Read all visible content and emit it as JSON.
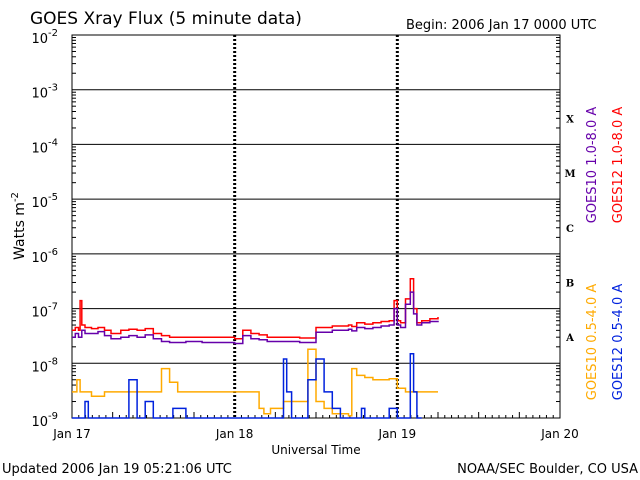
{
  "chart_data": {
    "type": "line",
    "title": "GOES Xray Flux (5 minute data)",
    "begin_label": "Begin:  2006 Jan 17 0000 UTC",
    "xlabel": "Universal Time",
    "ylabel": "Watts m",
    "ylabel_exponent": "-2",
    "x_unit": "days since 2006 Jan 17 00:00 UTC",
    "xlim": [
      0,
      3
    ],
    "x_ticks": [
      {
        "value": 0,
        "label": "Jan 17"
      },
      {
        "value": 1,
        "label": "Jan 18"
      },
      {
        "value": 2,
        "label": "Jan 19"
      },
      {
        "value": 3,
        "label": "Jan 20"
      }
    ],
    "y_scale": "log",
    "ylim": [
      1e-09,
      0.01
    ],
    "y_ticks": [
      {
        "value": 0.01,
        "base": "10",
        "exp": "-2"
      },
      {
        "value": 0.001,
        "base": "10",
        "exp": "-3"
      },
      {
        "value": 0.0001,
        "base": "10",
        "exp": "-4"
      },
      {
        "value": 1e-05,
        "base": "10",
        "exp": "-5"
      },
      {
        "value": 1e-06,
        "base": "10",
        "exp": "-6"
      },
      {
        "value": 1e-07,
        "base": "10",
        "exp": "-7"
      },
      {
        "value": 1e-08,
        "base": "10",
        "exp": "-8"
      },
      {
        "value": 1e-09,
        "base": "10",
        "exp": "-9"
      }
    ],
    "flare_classes": [
      {
        "label": "X",
        "value": 0.0003
      },
      {
        "label": "M",
        "value": 3e-05
      },
      {
        "label": "C",
        "value": 3e-06
      },
      {
        "label": "B",
        "value": 3e-07
      },
      {
        "label": "A",
        "value": 3e-08
      }
    ],
    "grid": true,
    "legend_position": "right",
    "series": [
      {
        "name": "GOES12 1.0-8.0 A",
        "color": "#ff0000",
        "x": [
          0,
          0.02,
          0.04,
          0.05,
          0.06,
          0.08,
          0.12,
          0.16,
          0.2,
          0.24,
          0.3,
          0.35,
          0.4,
          0.45,
          0.5,
          0.55,
          0.6,
          0.7,
          0.8,
          0.9,
          1.0,
          1.05,
          1.1,
          1.15,
          1.2,
          1.3,
          1.4,
          1.5,
          1.6,
          1.7,
          1.72,
          1.75,
          1.8,
          1.85,
          1.9,
          1.95,
          1.98,
          2.0,
          2.02,
          2.05,
          2.08,
          2.1,
          2.12,
          2.15,
          2.2,
          2.25
        ],
        "values": [
          4e-08,
          4.5e-08,
          4e-08,
          1.4e-07,
          5e-08,
          4.5e-08,
          4.3e-08,
          4.5e-08,
          4e-08,
          3.5e-08,
          4e-08,
          4.2e-08,
          4e-08,
          4.3e-08,
          3.5e-08,
          3.2e-08,
          3e-08,
          3e-08,
          3e-08,
          3e-08,
          2.8e-08,
          4e-08,
          3.5e-08,
          3.3e-08,
          3e-08,
          3e-08,
          2.9e-08,
          4.5e-08,
          4.8e-08,
          5e-08,
          4.7e-08,
          5.5e-08,
          5.2e-08,
          5.5e-08,
          5.8e-08,
          6e-08,
          1.4e-07,
          6e-08,
          5.5e-08,
          1.5e-07,
          3.5e-07,
          1e-07,
          5.5e-08,
          6e-08,
          6.5e-08,
          7e-08
        ]
      },
      {
        "name": "GOES10 1.0-8.0 A",
        "color": "#6600aa",
        "x": [
          0,
          0.02,
          0.04,
          0.06,
          0.08,
          0.12,
          0.16,
          0.2,
          0.24,
          0.3,
          0.35,
          0.4,
          0.45,
          0.5,
          0.55,
          0.6,
          0.7,
          0.8,
          0.9,
          1.0,
          1.05,
          1.1,
          1.15,
          1.2,
          1.3,
          1.4,
          1.5,
          1.6,
          1.7,
          1.72,
          1.75,
          1.8,
          1.85,
          1.9,
          1.95,
          1.98,
          2.0,
          2.02,
          2.05,
          2.08,
          2.1,
          2.12,
          2.15,
          2.2,
          2.25
        ],
        "values": [
          3e-08,
          3.5e-08,
          3e-08,
          4e-08,
          3.5e-08,
          3.5e-08,
          3.8e-08,
          3.2e-08,
          2.8e-08,
          3e-08,
          3.2e-08,
          3e-08,
          3.3e-08,
          2.8e-08,
          2.5e-08,
          2.4e-08,
          2.5e-08,
          2.4e-08,
          2.4e-08,
          2.3e-08,
          3.2e-08,
          2.8e-08,
          2.7e-08,
          2.5e-08,
          2.5e-08,
          2.4e-08,
          3.7e-08,
          4e-08,
          4.2e-08,
          3.9e-08,
          4.5e-08,
          4.3e-08,
          4.5e-08,
          4.8e-08,
          5e-08,
          1e-07,
          5e-08,
          4.5e-08,
          1.2e-07,
          2e-07,
          8e-08,
          5e-08,
          5.5e-08,
          5.8e-08,
          6e-08
        ]
      },
      {
        "name": "GOES10 0.5-4.0 A",
        "color": "#ffaa00",
        "x": [
          0,
          0.03,
          0.05,
          0.08,
          0.12,
          0.2,
          0.3,
          0.45,
          0.55,
          0.6,
          0.65,
          0.7,
          0.8,
          0.9,
          1.0,
          1.1,
          1.15,
          1.18,
          1.22,
          1.3,
          1.4,
          1.45,
          1.5,
          1.55,
          1.6,
          1.7,
          1.72,
          1.75,
          1.8,
          1.85,
          1.9,
          1.95,
          2.0,
          2.05,
          2.1,
          2.2,
          2.25
        ],
        "values": [
          3e-09,
          5e-09,
          3e-09,
          3e-09,
          2.5e-09,
          3e-09,
          3e-09,
          3e-09,
          8e-09,
          4.5e-09,
          3e-09,
          3e-09,
          3e-09,
          3e-09,
          3e-09,
          3e-09,
          1.5e-09,
          1.2e-09,
          1.5e-09,
          2e-09,
          2e-09,
          1.8e-08,
          2e-09,
          1.5e-09,
          1.2e-09,
          1.1e-09,
          8e-09,
          6e-09,
          5.5e-09,
          5e-09,
          5e-09,
          5.2e-09,
          3.5e-09,
          3e-09,
          3e-09,
          3e-09,
          3e-09
        ]
      },
      {
        "name": "GOES12 0.5-4.0 A",
        "color": "#0022dd",
        "x": [
          0,
          0.05,
          0.08,
          0.1,
          0.12,
          0.14,
          0.3,
          0.35,
          0.4,
          0.45,
          0.5,
          0.55,
          0.62,
          0.7,
          0.8,
          0.9,
          1.0,
          1.15,
          1.2,
          1.28,
          1.3,
          1.32,
          1.35,
          1.4,
          1.45,
          1.5,
          1.55,
          1.6,
          1.65,
          1.75,
          1.78,
          1.8,
          1.85,
          1.9,
          1.95,
          2.0,
          2.05,
          2.08,
          2.1,
          2.12,
          2.15
        ],
        "values": [
          1e-09,
          1e-09,
          2e-09,
          1e-09,
          1e-09,
          1e-09,
          1e-09,
          5e-09,
          1e-09,
          2e-09,
          1e-09,
          1e-09,
          1.5e-09,
          1e-09,
          1e-09,
          1e-09,
          1e-09,
          1e-09,
          1e-09,
          1e-09,
          1.2e-08,
          3e-09,
          1e-09,
          1e-09,
          5e-09,
          1.2e-08,
          3e-09,
          1.5e-09,
          1e-09,
          1e-09,
          1.5e-09,
          1e-09,
          1e-09,
          1e-09,
          1.5e-09,
          1e-09,
          1e-09,
          1.5e-08,
          3e-09,
          1e-09,
          1e-09
        ]
      }
    ]
  },
  "footer": {
    "updated": "Updated 2006 Jan 19 05:21:06 UTC",
    "credit": "NOAA/SEC Boulder, CO USA"
  }
}
